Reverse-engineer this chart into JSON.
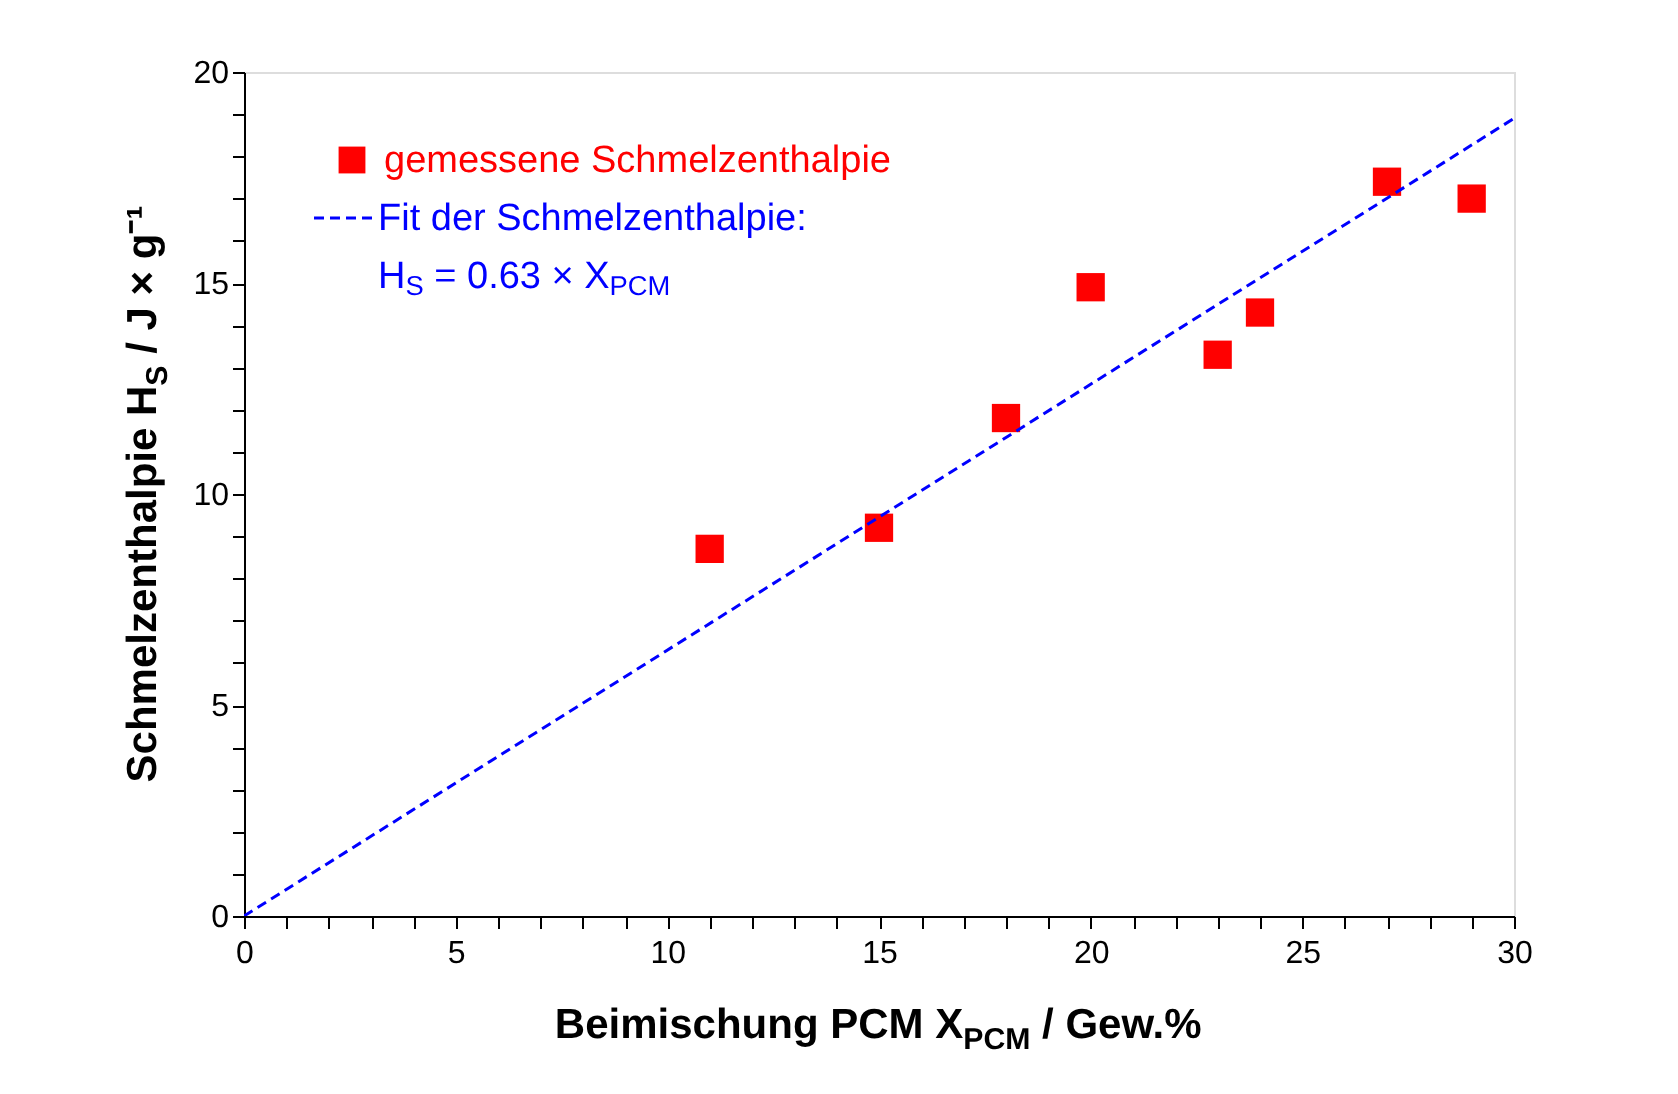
{
  "chart_data": {
    "type": "scatter",
    "xlabel": "Beimischung PCM X$_{PCM}$  /  Gew.%",
    "ylabel": "Schmelzenthalpie H$_{S}$  /  J × g⁻¹",
    "xlim": [
      0,
      30
    ],
    "ylim": [
      0,
      20
    ],
    "xticks": [
      0,
      {
        "value": 1,
        "label": null
      },
      {
        "value": 2,
        "label": null
      },
      {
        "value": 3,
        "label": null
      },
      {
        "value": 4,
        "label": null
      },
      5,
      {
        "value": 6,
        "label": null
      },
      {
        "value": 7,
        "label": null
      },
      {
        "value": 8,
        "label": null
      },
      {
        "value": 9,
        "label": null
      },
      10,
      {
        "value": 11,
        "label": null
      },
      {
        "value": 12,
        "label": null
      },
      {
        "value": 13,
        "label": null
      },
      {
        "value": 14,
        "label": null
      },
      15,
      {
        "value": 16,
        "label": null
      },
      {
        "value": 17,
        "label": null
      },
      {
        "value": 18,
        "label": null
      },
      {
        "value": 19,
        "label": null
      },
      20,
      {
        "value": 21,
        "label": null
      },
      {
        "value": 22,
        "label": null
      },
      {
        "value": 23,
        "label": null
      },
      {
        "value": 24,
        "label": null
      },
      25,
      {
        "value": 26,
        "label": null
      },
      {
        "value": 27,
        "label": null
      },
      {
        "value": 28,
        "label": null
      },
      {
        "value": 29,
        "label": null
      },
      30
    ],
    "yticks": [
      0,
      {
        "value": 1,
        "label": null
      },
      {
        "value": 2,
        "label": null
      },
      {
        "value": 3,
        "label": null
      },
      {
        "value": 4,
        "label": null
      },
      5,
      {
        "value": 6,
        "label": null
      },
      {
        "value": 7,
        "label": null
      },
      {
        "value": 8,
        "label": null
      },
      {
        "value": 9,
        "label": null
      },
      10,
      {
        "value": 11,
        "label": null
      },
      {
        "value": 12,
        "label": null
      },
      {
        "value": 13,
        "label": null
      },
      {
        "value": 14,
        "label": null
      },
      15,
      {
        "value": 16,
        "label": null
      },
      {
        "value": 17,
        "label": null
      },
      {
        "value": 18,
        "label": null
      },
      {
        "value": 19,
        "label": null
      },
      20
    ],
    "grid": false,
    "legend": "top left",
    "series": [
      {
        "name": "gemessene Schmelzenthalpie",
        "marker": "square",
        "color": "#ff0000",
        "x": [
          11,
          15,
          18,
          20,
          23,
          24,
          27,
          29
        ],
        "values": [
          8.7,
          9.2,
          11.8,
          14.9,
          13.3,
          14.3,
          17.4,
          17.0
        ]
      },
      {
        "name": "Fit der Schmelzenthalpie:\nH$_{S}$  =  0.63 × X$_{PCM}$",
        "type": "line",
        "line_style": "dashed",
        "color": "#0000ff",
        "x": [
          0,
          30
        ],
        "values": [
          0,
          18.9
        ]
      }
    ]
  }
}
